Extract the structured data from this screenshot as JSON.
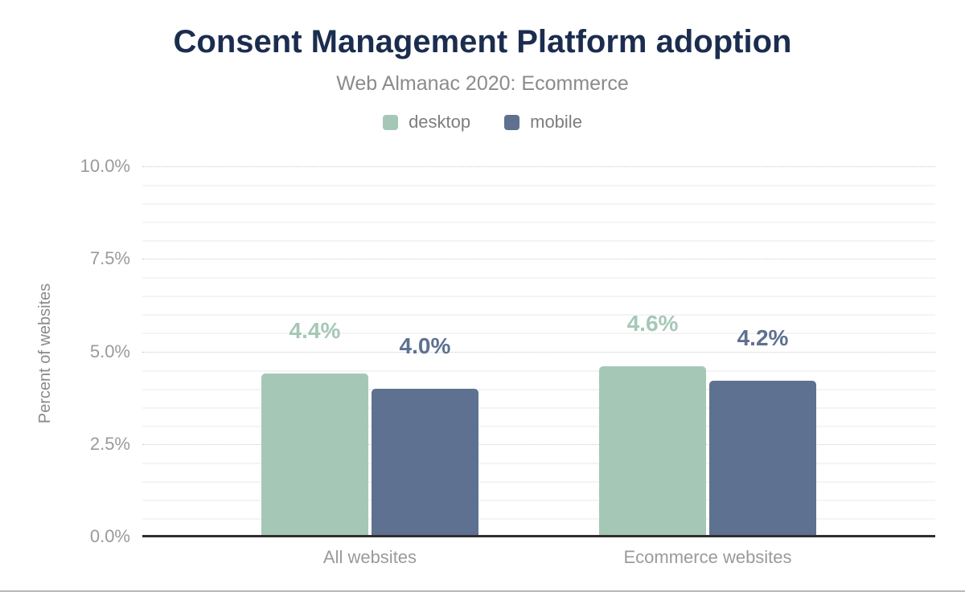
{
  "header": {
    "title": "Consent Management Platform adoption",
    "subtitle": "Web Almanac 2020: Ecommerce"
  },
  "legend": {
    "items": [
      {
        "label": "desktop",
        "color": "#a5c8b6"
      },
      {
        "label": "mobile",
        "color": "#5e7191"
      }
    ]
  },
  "chart_data": {
    "type": "bar",
    "title": "Consent Management Platform adoption",
    "subtitle": "Web Almanac 2020: Ecommerce",
    "categories": [
      "All websites",
      "Ecommerce websites"
    ],
    "series": [
      {
        "name": "desktop",
        "color": "#a5c8b6",
        "values": [
          4.4,
          4.6
        ],
        "labels": [
          "4.4%",
          "4.6%"
        ]
      },
      {
        "name": "mobile",
        "color": "#5e7191",
        "values": [
          4.0,
          4.2
        ],
        "labels": [
          "4.0%",
          "4.2%"
        ]
      }
    ],
    "ylabel": "Percent of websites",
    "ylim": [
      0,
      10
    ],
    "yticks": [
      {
        "value": 0,
        "label": "0.0%"
      },
      {
        "value": 2.5,
        "label": "2.5%"
      },
      {
        "value": 5,
        "label": "5.0%"
      },
      {
        "value": 7.5,
        "label": "7.5%"
      },
      {
        "value": 10,
        "label": "10.0%"
      }
    ],
    "minor_gridline_step": 0.5,
    "grid": "horizontal",
    "legend_position": "top"
  },
  "colors": {
    "title_text": "#1b2d4f",
    "subtitle_text": "#8b8b8b",
    "axis_text": "#9a9a9a",
    "axis_line": "#2f2f2f",
    "grid_major": "#c9c9c9",
    "grid_minor": "#f4f4f4",
    "footer_divider": "#b8b8b8"
  }
}
